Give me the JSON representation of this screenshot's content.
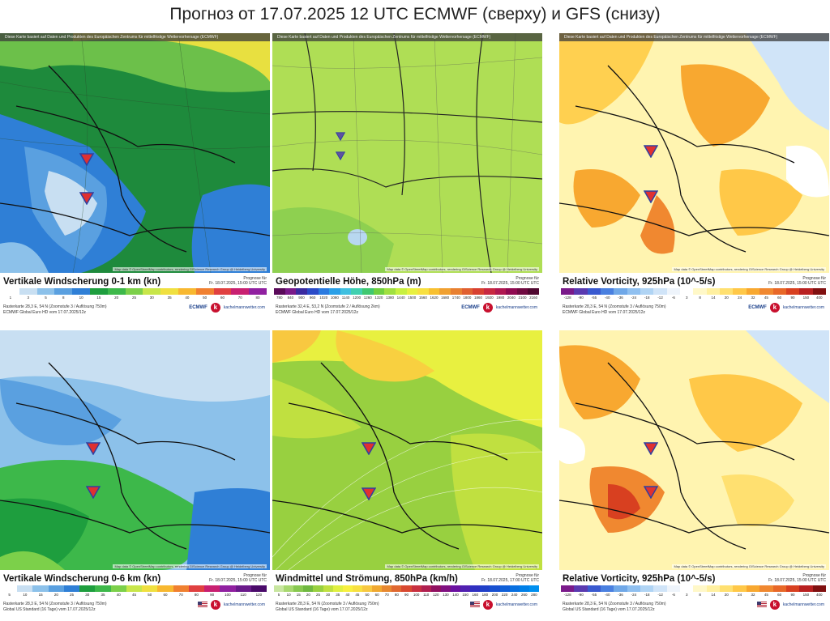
{
  "title": "Прогноз от 17.07.2025 12 UTC ECMWF (сверху) и GFS (снизу)",
  "site": "kachelmannwetter.com",
  "panels": [
    {
      "header": "Diese Karte basiert auf Daten und Produkten des Europäischen Zentrums für mittelfristige Wettervorhersage (ECMWF)",
      "title": "Vertikale Windscherung 0-1 km (kn)",
      "date": "Prognose für\nFr. 18.07.2025, 15:00 UTC UTC",
      "ticks": [
        "1",
        "3",
        "5",
        "8",
        "10",
        "15",
        "20",
        "25",
        "30",
        "35",
        "40",
        "50",
        "60",
        "70",
        "80"
      ],
      "colors": [
        "#ffffff",
        "#c8dff2",
        "#8cc1ea",
        "#5aa0e0",
        "#2f7fd6",
        "#1e9e3e",
        "#3db84a",
        "#7cd04a",
        "#c8e64a",
        "#f0e040",
        "#f8b830",
        "#f08030",
        "#e04040",
        "#c82070",
        "#9020a0"
      ],
      "info": "Rasterkarte 28,3 E, 54 N (Zoomstufe 3 / Auflösung 750m)\nECMWF Global Euro HD vom 17.07.2025/12z",
      "model": "ECMWF",
      "attribution": "Map data © OpenStreetMap contributors, rendering GIScience Research Group @ Heidelberg University"
    },
    {
      "header": "Diese Karte basiert auf Daten und Produkten des Europäischen Zentrums für mittelfristige Wettervorhersage (ECMWF)",
      "title": "Geopotentielle Höhe, 850hPa (m)",
      "date": "Prognose für\nFr. 18.07.2025, 15:00 UTC UTC",
      "ticks": [
        "780",
        "840",
        "900",
        "960",
        "1020",
        "1080",
        "1140",
        "1200",
        "1260",
        "1320",
        "1380",
        "1440",
        "1500",
        "1560",
        "1620",
        "1680",
        "1740",
        "1800",
        "1860",
        "1920",
        "1980",
        "2040",
        "2100",
        "2160"
      ],
      "colors": [
        "#5a0a5a",
        "#7a1a8a",
        "#3a2aa0",
        "#2a4ac8",
        "#2a7ae0",
        "#2aa0e8",
        "#40c0e0",
        "#40d0b0",
        "#40c870",
        "#70d040",
        "#a0e040",
        "#c8f040",
        "#e8f040",
        "#f8e040",
        "#f8c030",
        "#f0a030",
        "#e88030",
        "#e06030",
        "#d84030",
        "#c82840",
        "#b01850",
        "#900a50",
        "#700a40",
        "#500830"
      ],
      "info": "Rasterkarte 32,4 E, 53,2 N (Zoomstufe 2 / Auflösung 2km)\nECMWF Global Euro HD vom 17.07.2025/12z",
      "model": "ECMWF",
      "attribution": "Map data © OpenStreetMap contributors, rendering GIScience Research Group @ Heidelberg University"
    },
    {
      "header": "Diese Karte basiert auf Daten und Produkten des Europäischen Zentrums für mittelfristige Wettervorhersage (ECMWF)",
      "title": "Relative Vorticity, 925hPa (10^-5/s)",
      "date": "Prognose für\nFr. 18.07.2025, 15:00 UTC UTC",
      "ticks": [
        "-128",
        "-90",
        "-55",
        "-40",
        "-36",
        "-24",
        "-18",
        "-12",
        "-6",
        "3",
        "8",
        "14",
        "20",
        "24",
        "32",
        "45",
        "60",
        "90",
        "150",
        "400"
      ],
      "colors": [
        "#7a1a8a",
        "#5a3ab0",
        "#3a5ad0",
        "#4a80e0",
        "#70a8e8",
        "#90c0f0",
        "#b0d4f4",
        "#d0e4f8",
        "#eef4fb",
        "#ffffff",
        "#fff8c8",
        "#fff0a0",
        "#ffe070",
        "#ffc848",
        "#f8a830",
        "#f08830",
        "#e86828",
        "#d84020",
        "#b82020",
        "#801010"
      ],
      "info": "Rasterkarte 28,3 E, 54 N (Zoomstufe 3 / Auflösung 750m)\nECMWF Global Euro HD vom 17.07.2025/12z",
      "model": "ECMWF",
      "attribution": "Map data © OpenStreetMap contributors, rendering GIScience Research Group @ Heidelberg University"
    },
    {
      "header": "",
      "title": "Vertikale Windscherung 0-6 km (kn)",
      "date": "Prognose für\nFr. 18.07.2025, 15:00 UTC UTC",
      "ticks": [
        "5",
        "10",
        "15",
        "20",
        "25",
        "30",
        "35",
        "40",
        "45",
        "50",
        "60",
        "70",
        "80",
        "90",
        "100",
        "110",
        "120"
      ],
      "colors": [
        "#ffffff",
        "#c8dff2",
        "#8cc1ea",
        "#5aa0e0",
        "#2f7fd6",
        "#1e9e3e",
        "#3db84a",
        "#7cd04a",
        "#c8e64a",
        "#f0e040",
        "#f8b830",
        "#f08030",
        "#e04040",
        "#c82070",
        "#9020a0",
        "#6a1a8a",
        "#4a0a6a"
      ],
      "info": "Rasterkarte 28,3 E, 54 N (Zoomstufe 3 / Auflösung 750m)\nGlobal US Standard (16 Tage) vom 17.07.2025/12z",
      "model": "",
      "attribution": "Map data © OpenStreetMap contributors, rendering GIScience Research Group @ Heidelberg University"
    },
    {
      "header": "",
      "title": "Windmittel und Strömung, 850hPa (km/h)",
      "date": "Prognose für\nFr. 18.07.2025, 17:00 UTC UTC",
      "ticks": [
        "5",
        "10",
        "15",
        "20",
        "25",
        "30",
        "35",
        "40",
        "45",
        "50",
        "60",
        "70",
        "80",
        "90",
        "100",
        "110",
        "120",
        "130",
        "140",
        "150",
        "160",
        "180",
        "200",
        "220",
        "240",
        "260",
        "280"
      ],
      "colors": [
        "#c8e6a0",
        "#a8d870",
        "#88c850",
        "#70b840",
        "#98d040",
        "#c0e040",
        "#e0f040",
        "#f8f040",
        "#f8e040",
        "#f8c840",
        "#f0a830",
        "#e88830",
        "#e06830",
        "#d84830",
        "#c83040",
        "#b02050",
        "#901060",
        "#801080",
        "#6a10a0",
        "#5020b0",
        "#3030c0",
        "#2040c8",
        "#1850d0",
        "#1060d8",
        "#0870e0",
        "#0080e8",
        "#0090f0"
      ],
      "info": "Rasterkarte 28,3 E, 54 N (Zoomstufe 3 / Auflösung 750m)\nGlobal US Standard (16 Tage) vom 17.07.2025/12z",
      "model": "",
      "attribution": "Map data © OpenStreetMap contributors, rendering GIScience Research Group @ Heidelberg University"
    },
    {
      "header": "",
      "title": "Relative Vorticity, 925hPa (10^-5/s)",
      "date": "Prognose für\nFr. 18.07.2025, 15:00 UTC UTC",
      "ticks": [
        "-128",
        "-90",
        "-55",
        "-40",
        "-36",
        "-24",
        "-18",
        "-12",
        "-6",
        "3",
        "8",
        "14",
        "20",
        "24",
        "32",
        "45",
        "60",
        "90",
        "150",
        "400"
      ],
      "colors": [
        "#7a1a8a",
        "#5a3ab0",
        "#3a5ad0",
        "#4a80e0",
        "#70a8e8",
        "#90c0f0",
        "#b0d4f4",
        "#d0e4f8",
        "#eef4fb",
        "#ffffff",
        "#fff8c8",
        "#fff0a0",
        "#ffe070",
        "#ffc848",
        "#f8a830",
        "#f08830",
        "#e86828",
        "#d84020",
        "#b82020",
        "#801010"
      ],
      "info": "Rasterkarte 28,3 E, 54 N (Zoomstufe 3 / Auflösung 750m)\nGlobal US Standard (16 Tage) vom 17.07.2025/12z",
      "model": "",
      "attribution": "Map data © OpenStreetMap contributors, rendering GIScience Research Group @ Heidelberg University"
    }
  ]
}
